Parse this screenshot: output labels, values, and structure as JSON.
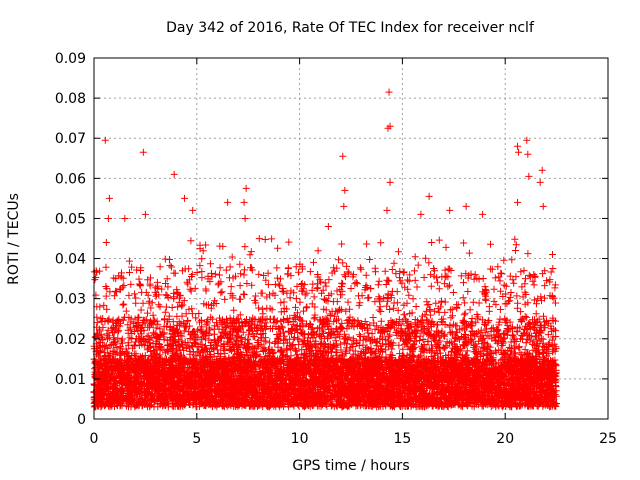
{
  "chart_data": {
    "type": "scatter",
    "title": "Day 342 of 2016, Rate Of TEC Index for receiver nclf",
    "xlabel": "GPS time / hours",
    "ylabel": "ROTI / TECUs",
    "xlim": [
      0,
      25
    ],
    "ylim": [
      0,
      0.09
    ],
    "x_ticks": [
      "0",
      "5",
      "10",
      "15",
      "20",
      "25"
    ],
    "y_ticks": [
      "0",
      "0.01",
      "0.02",
      "0.03",
      "0.04",
      "0.05",
      "0.06",
      "0.07",
      "0.08",
      "0.09"
    ],
    "grid": true,
    "marker": "plus",
    "color": "#ff0000",
    "x_range_of_points": [
      0,
      22.5
    ],
    "series": [
      {
        "points": [
          [
            0.55,
            0.0695
          ],
          [
            0.75,
            0.055
          ],
          [
            0.7,
            0.05
          ],
          [
            0.6,
            0.044
          ],
          [
            1.5,
            0.05
          ],
          [
            2.4,
            0.0665
          ],
          [
            2.5,
            0.051
          ],
          [
            3.9,
            0.061
          ],
          [
            4.4,
            0.055
          ],
          [
            4.8,
            0.052
          ],
          [
            6.5,
            0.054
          ],
          [
            7.4,
            0.0575
          ],
          [
            7.3,
            0.054
          ],
          [
            7.35,
            0.05
          ],
          [
            12.1,
            0.0655
          ],
          [
            12.2,
            0.057
          ],
          [
            12.15,
            0.053
          ],
          [
            11.4,
            0.048
          ],
          [
            14.35,
            0.0815
          ],
          [
            14.4,
            0.073
          ],
          [
            14.3,
            0.0725
          ],
          [
            14.4,
            0.059
          ],
          [
            14.25,
            0.052
          ],
          [
            16.3,
            0.0555
          ],
          [
            15.9,
            0.051
          ],
          [
            18.1,
            0.053
          ],
          [
            17.3,
            0.052
          ],
          [
            18.9,
            0.051
          ],
          [
            20.6,
            0.068
          ],
          [
            20.65,
            0.0665
          ],
          [
            21.05,
            0.0695
          ],
          [
            21.1,
            0.066
          ],
          [
            21.15,
            0.0605
          ],
          [
            21.8,
            0.062
          ],
          [
            21.7,
            0.059
          ],
          [
            21.85,
            0.053
          ],
          [
            20.6,
            0.054
          ],
          [
            20.5,
            0.042
          ],
          [
            22.3,
            0.041
          ]
        ]
      }
    ]
  }
}
